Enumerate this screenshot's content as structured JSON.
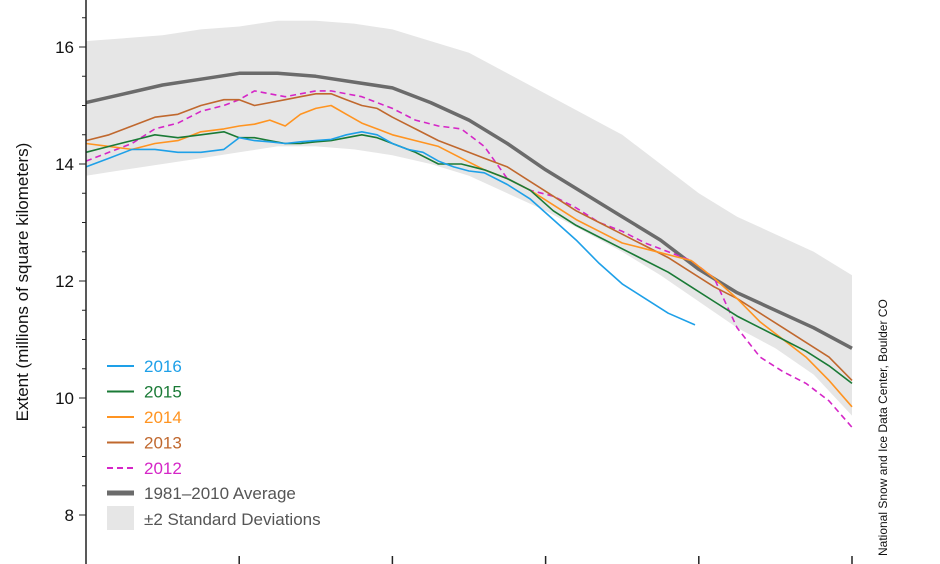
{
  "chart_data": {
    "type": "line",
    "ylabel": "Extent (millions of square kilometers)",
    "credit": "National Snow and Ice Data Center, Boulder CO",
    "ylim": [
      7.6,
      17
    ],
    "xlim": [
      0,
      100
    ],
    "yticks": [
      8,
      10,
      12,
      14,
      16
    ],
    "xticks": [
      20,
      40,
      60,
      80,
      100
    ],
    "band": {
      "name": "±2 Standard Deviations",
      "color": "#e6e6e6",
      "x": [
        0,
        5,
        10,
        15,
        20,
        25,
        30,
        35,
        40,
        45,
        50,
        55,
        60,
        65,
        70,
        75,
        80,
        85,
        90,
        95,
        100
      ],
      "upper": [
        16.1,
        16.15,
        16.2,
        16.3,
        16.35,
        16.45,
        16.45,
        16.4,
        16.3,
        16.1,
        15.9,
        15.55,
        15.2,
        14.85,
        14.5,
        14.0,
        13.5,
        13.1,
        12.8,
        12.5,
        12.1
      ],
      "lower": [
        13.8,
        13.9,
        14.0,
        14.1,
        14.2,
        14.3,
        14.3,
        14.25,
        14.15,
        14.0,
        13.8,
        13.5,
        13.2,
        12.85,
        12.5,
        12.1,
        11.65,
        11.2,
        10.85,
        10.4,
        9.7
      ]
    },
    "average": {
      "name": "1981–2010 Average",
      "color": "#6b6b6b",
      "x": [
        0,
        5,
        10,
        15,
        20,
        25,
        30,
        35,
        40,
        45,
        50,
        55,
        60,
        65,
        70,
        75,
        80,
        85,
        90,
        95,
        100
      ],
      "values": [
        15.05,
        15.2,
        15.35,
        15.45,
        15.55,
        15.55,
        15.5,
        15.4,
        15.3,
        15.05,
        14.75,
        14.35,
        13.9,
        13.5,
        13.1,
        12.7,
        12.2,
        11.8,
        11.5,
        11.2,
        10.85
      ]
    },
    "series": [
      {
        "name": "2016",
        "color": "#1ea0e8",
        "dashed": false,
        "x": [
          0,
          3,
          6,
          9,
          12,
          15,
          18,
          20,
          22,
          24,
          26,
          28,
          30,
          32,
          34,
          36,
          38,
          40,
          42,
          44,
          46,
          48,
          50,
          52,
          55,
          58,
          61,
          64,
          67,
          70,
          73,
          76,
          79.5
        ],
        "values": [
          13.95,
          14.1,
          14.25,
          14.25,
          14.2,
          14.2,
          14.25,
          14.45,
          14.4,
          14.38,
          14.35,
          14.38,
          14.4,
          14.42,
          14.5,
          14.55,
          14.5,
          14.35,
          14.25,
          14.2,
          14.05,
          13.95,
          13.88,
          13.85,
          13.65,
          13.4,
          13.05,
          12.7,
          12.3,
          11.95,
          11.7,
          11.45,
          11.25
        ]
      },
      {
        "name": "2015",
        "color": "#1a7a36",
        "dashed": false,
        "x": [
          0,
          3,
          6,
          9,
          12,
          15,
          18,
          20,
          22,
          24,
          26,
          28,
          30,
          32,
          34,
          36,
          38,
          40,
          43,
          46,
          49,
          52,
          55,
          58,
          61,
          64,
          67,
          70,
          73,
          76,
          79,
          82,
          85,
          88,
          91,
          94,
          97,
          100
        ],
        "values": [
          14.2,
          14.3,
          14.4,
          14.5,
          14.45,
          14.5,
          14.55,
          14.45,
          14.45,
          14.4,
          14.35,
          14.35,
          14.38,
          14.4,
          14.45,
          14.5,
          14.45,
          14.35,
          14.2,
          14.0,
          14.0,
          13.9,
          13.75,
          13.55,
          13.2,
          12.95,
          12.75,
          12.55,
          12.35,
          12.15,
          11.9,
          11.65,
          11.4,
          11.2,
          11.0,
          10.8,
          10.55,
          10.25
        ]
      },
      {
        "name": "2014",
        "color": "#ff9421",
        "dashed": false,
        "x": [
          0,
          3,
          6,
          9,
          12,
          15,
          18,
          20,
          22,
          24,
          26,
          28,
          30,
          32,
          34,
          36,
          38,
          40,
          43,
          46,
          49,
          52,
          55,
          58,
          61,
          64,
          67,
          70,
          73,
          76,
          79,
          82,
          85,
          88,
          91,
          94,
          97,
          100
        ],
        "values": [
          14.35,
          14.3,
          14.25,
          14.35,
          14.4,
          14.55,
          14.6,
          14.65,
          14.68,
          14.75,
          14.65,
          14.85,
          14.95,
          15.0,
          14.85,
          14.7,
          14.6,
          14.5,
          14.4,
          14.3,
          14.1,
          13.9,
          13.75,
          13.55,
          13.3,
          13.05,
          12.85,
          12.65,
          12.55,
          12.45,
          12.35,
          12.05,
          11.7,
          11.3,
          11.0,
          10.7,
          10.3,
          9.85
        ]
      },
      {
        "name": "2013",
        "color": "#c0682e",
        "dashed": false,
        "x": [
          0,
          3,
          6,
          9,
          12,
          15,
          18,
          20,
          22,
          24,
          26,
          28,
          30,
          32,
          34,
          36,
          38,
          40,
          43,
          46,
          49,
          52,
          55,
          58,
          61,
          64,
          67,
          70,
          73,
          76,
          79,
          82,
          85,
          88,
          91,
          94,
          97,
          100
        ],
        "values": [
          14.4,
          14.5,
          14.65,
          14.8,
          14.85,
          15.0,
          15.1,
          15.1,
          15.0,
          15.05,
          15.1,
          15.15,
          15.2,
          15.2,
          15.1,
          15.0,
          14.95,
          14.8,
          14.6,
          14.4,
          14.25,
          14.1,
          13.95,
          13.7,
          13.45,
          13.2,
          13.0,
          12.8,
          12.6,
          12.4,
          12.15,
          11.9,
          11.7,
          11.45,
          11.2,
          10.95,
          10.7,
          10.3
        ]
      },
      {
        "name": "2012",
        "color": "#d526c7",
        "dashed": true,
        "x": [
          0,
          3,
          6,
          9,
          12,
          15,
          18,
          20,
          22,
          24,
          26,
          28,
          30,
          32,
          34,
          36,
          38,
          40,
          43,
          46,
          49,
          52,
          55,
          58,
          61,
          64,
          67,
          70,
          73,
          76,
          79,
          82,
          85,
          88,
          91,
          94,
          97,
          100
        ],
        "values": [
          14.05,
          14.2,
          14.35,
          14.6,
          14.7,
          14.9,
          15.0,
          15.1,
          15.25,
          15.2,
          15.15,
          15.2,
          15.25,
          15.25,
          15.2,
          15.15,
          15.05,
          14.95,
          14.75,
          14.65,
          14.6,
          14.3,
          13.75,
          13.55,
          13.45,
          13.25,
          13.0,
          12.85,
          12.65,
          12.5,
          12.35,
          12.05,
          11.2,
          10.7,
          10.45,
          10.25,
          9.95,
          9.5
        ]
      }
    ],
    "legend_position": "bottom-left",
    "grid": false
  }
}
